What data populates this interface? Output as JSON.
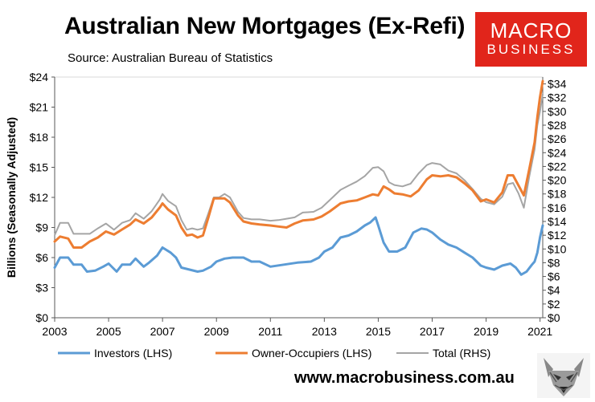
{
  "header": {
    "title": "Australian New Mortgages (Ex-Refi)",
    "subtitle": "Source: Australian Bureau of Statistics"
  },
  "logo": {
    "line1": "MACRO",
    "line2": "BUSINESS",
    "color": "#e1251b"
  },
  "footer": {
    "url": "www.macrobusiness.com.au"
  },
  "chart_data": {
    "type": "line",
    "ylabel": "Billions (Seasonally Adjusted)",
    "xlim": [
      2003,
      2021.1
    ],
    "ylim_left": [
      0,
      24
    ],
    "ylim_right": [
      0,
      35
    ],
    "x_ticks": [
      "2003",
      "2005",
      "2007",
      "2009",
      "2011",
      "2013",
      "2015",
      "2017",
      "2019",
      "2021"
    ],
    "y_left_ticks": [
      "$0",
      "$3",
      "$6",
      "$9",
      "$12",
      "$15",
      "$18",
      "$21",
      "$24"
    ],
    "y_right_ticks": [
      "$0",
      "$2",
      "$4",
      "$6",
      "$8",
      "$10",
      "$12",
      "$14",
      "$16",
      "$18",
      "$20",
      "$22",
      "$24",
      "$26",
      "$28",
      "$30",
      "$32",
      "$34"
    ],
    "grid": false,
    "legend_position": "bottom",
    "series": [
      {
        "name": "Investors (LHS)",
        "axis": "left",
        "color": "#5b9bd5",
        "points": [
          [
            2003.0,
            5.0
          ],
          [
            2003.2,
            6.0
          ],
          [
            2003.5,
            6.0
          ],
          [
            2003.7,
            5.3
          ],
          [
            2004.0,
            5.3
          ],
          [
            2004.2,
            4.6
          ],
          [
            2004.5,
            4.7
          ],
          [
            2004.8,
            5.1
          ],
          [
            2005.0,
            5.4
          ],
          [
            2005.3,
            4.6
          ],
          [
            2005.5,
            5.3
          ],
          [
            2005.8,
            5.3
          ],
          [
            2006.0,
            5.9
          ],
          [
            2006.3,
            5.1
          ],
          [
            2006.5,
            5.5
          ],
          [
            2006.8,
            6.2
          ],
          [
            2007.0,
            7.0
          ],
          [
            2007.3,
            6.5
          ],
          [
            2007.5,
            6.0
          ],
          [
            2007.7,
            5.0
          ],
          [
            2008.0,
            4.8
          ],
          [
            2008.3,
            4.6
          ],
          [
            2008.5,
            4.7
          ],
          [
            2008.8,
            5.1
          ],
          [
            2009.0,
            5.6
          ],
          [
            2009.3,
            5.9
          ],
          [
            2009.6,
            6.0
          ],
          [
            2010.0,
            6.0
          ],
          [
            2010.3,
            5.6
          ],
          [
            2010.6,
            5.6
          ],
          [
            2011.0,
            5.1
          ],
          [
            2011.5,
            5.3
          ],
          [
            2012.0,
            5.5
          ],
          [
            2012.5,
            5.6
          ],
          [
            2012.8,
            6.0
          ],
          [
            2013.0,
            6.6
          ],
          [
            2013.3,
            7.0
          ],
          [
            2013.6,
            8.0
          ],
          [
            2013.9,
            8.2
          ],
          [
            2014.2,
            8.6
          ],
          [
            2014.5,
            9.2
          ],
          [
            2014.7,
            9.5
          ],
          [
            2014.9,
            10.0
          ],
          [
            2015.0,
            9.2
          ],
          [
            2015.2,
            7.5
          ],
          [
            2015.4,
            6.6
          ],
          [
            2015.7,
            6.6
          ],
          [
            2016.0,
            7.0
          ],
          [
            2016.3,
            8.5
          ],
          [
            2016.6,
            8.9
          ],
          [
            2016.8,
            8.8
          ],
          [
            2017.0,
            8.5
          ],
          [
            2017.3,
            7.8
          ],
          [
            2017.6,
            7.3
          ],
          [
            2017.9,
            7.0
          ],
          [
            2018.2,
            6.5
          ],
          [
            2018.5,
            6.0
          ],
          [
            2018.8,
            5.2
          ],
          [
            2019.0,
            5.0
          ],
          [
            2019.3,
            4.8
          ],
          [
            2019.6,
            5.2
          ],
          [
            2019.9,
            5.4
          ],
          [
            2020.1,
            5.0
          ],
          [
            2020.3,
            4.3
          ],
          [
            2020.5,
            4.6
          ],
          [
            2020.7,
            5.3
          ],
          [
            2020.8,
            5.6
          ],
          [
            2020.9,
            6.5
          ],
          [
            2021.0,
            8.0
          ],
          [
            2021.1,
            9.2
          ]
        ]
      },
      {
        "name": "Owner-Occupiers (LHS)",
        "axis": "left",
        "color": "#ed7d31",
        "points": [
          [
            2003.0,
            7.6
          ],
          [
            2003.2,
            8.1
          ],
          [
            2003.5,
            7.9
          ],
          [
            2003.7,
            7.0
          ],
          [
            2004.0,
            7.0
          ],
          [
            2004.3,
            7.6
          ],
          [
            2004.6,
            8.0
          ],
          [
            2004.9,
            8.6
          ],
          [
            2005.2,
            8.3
          ],
          [
            2005.5,
            8.8
          ],
          [
            2005.8,
            9.3
          ],
          [
            2006.0,
            9.8
          ],
          [
            2006.3,
            9.4
          ],
          [
            2006.6,
            10.0
          ],
          [
            2006.9,
            11.0
          ],
          [
            2007.0,
            11.4
          ],
          [
            2007.2,
            10.8
          ],
          [
            2007.5,
            10.2
          ],
          [
            2007.7,
            9.0
          ],
          [
            2007.9,
            8.2
          ],
          [
            2008.1,
            8.3
          ],
          [
            2008.3,
            8.0
          ],
          [
            2008.5,
            8.2
          ],
          [
            2008.7,
            10.0
          ],
          [
            2008.9,
            11.9
          ],
          [
            2009.1,
            11.9
          ],
          [
            2009.3,
            11.9
          ],
          [
            2009.5,
            11.5
          ],
          [
            2009.8,
            10.2
          ],
          [
            2010.0,
            9.6
          ],
          [
            2010.3,
            9.4
          ],
          [
            2010.6,
            9.3
          ],
          [
            2011.0,
            9.2
          ],
          [
            2011.3,
            9.1
          ],
          [
            2011.6,
            9.0
          ],
          [
            2011.9,
            9.4
          ],
          [
            2012.2,
            9.7
          ],
          [
            2012.6,
            9.8
          ],
          [
            2012.9,
            10.1
          ],
          [
            2013.2,
            10.6
          ],
          [
            2013.6,
            11.4
          ],
          [
            2013.9,
            11.6
          ],
          [
            2014.2,
            11.7
          ],
          [
            2014.5,
            12.0
          ],
          [
            2014.8,
            12.3
          ],
          [
            2015.0,
            12.2
          ],
          [
            2015.2,
            13.1
          ],
          [
            2015.4,
            12.8
          ],
          [
            2015.6,
            12.4
          ],
          [
            2015.9,
            12.3
          ],
          [
            2016.2,
            12.1
          ],
          [
            2016.5,
            12.7
          ],
          [
            2016.8,
            13.8
          ],
          [
            2017.0,
            14.2
          ],
          [
            2017.3,
            14.1
          ],
          [
            2017.6,
            14.2
          ],
          [
            2017.9,
            14.0
          ],
          [
            2018.2,
            13.4
          ],
          [
            2018.5,
            12.7
          ],
          [
            2018.8,
            11.6
          ],
          [
            2019.0,
            11.8
          ],
          [
            2019.3,
            11.5
          ],
          [
            2019.6,
            12.5
          ],
          [
            2019.8,
            14.2
          ],
          [
            2020.0,
            14.2
          ],
          [
            2020.2,
            13.2
          ],
          [
            2020.4,
            12.2
          ],
          [
            2020.6,
            14.8
          ],
          [
            2020.8,
            17.5
          ],
          [
            2020.9,
            20.0
          ],
          [
            2021.0,
            22.0
          ],
          [
            2021.1,
            23.6
          ]
        ]
      },
      {
        "name": "Total (RHS)",
        "axis": "right",
        "color": "#a5a5a5",
        "points": [
          [
            2003.0,
            12.0
          ],
          [
            2003.2,
            13.8
          ],
          [
            2003.5,
            13.8
          ],
          [
            2003.7,
            12.2
          ],
          [
            2004.0,
            12.2
          ],
          [
            2004.3,
            12.2
          ],
          [
            2004.6,
            13.0
          ],
          [
            2004.9,
            13.7
          ],
          [
            2005.2,
            12.8
          ],
          [
            2005.5,
            13.8
          ],
          [
            2005.8,
            14.2
          ],
          [
            2006.0,
            15.2
          ],
          [
            2006.3,
            14.4
          ],
          [
            2006.6,
            15.5
          ],
          [
            2006.9,
            17.2
          ],
          [
            2007.0,
            18.0
          ],
          [
            2007.2,
            17.0
          ],
          [
            2007.5,
            16.2
          ],
          [
            2007.7,
            14.2
          ],
          [
            2007.9,
            12.8
          ],
          [
            2008.1,
            13.0
          ],
          [
            2008.3,
            12.8
          ],
          [
            2008.5,
            13.0
          ],
          [
            2008.7,
            15.2
          ],
          [
            2008.9,
            17.5
          ],
          [
            2009.1,
            17.5
          ],
          [
            2009.3,
            18.0
          ],
          [
            2009.5,
            17.5
          ],
          [
            2009.8,
            15.4
          ],
          [
            2010.0,
            14.5
          ],
          [
            2010.3,
            14.3
          ],
          [
            2010.6,
            14.3
          ],
          [
            2011.0,
            14.1
          ],
          [
            2011.3,
            14.2
          ],
          [
            2011.6,
            14.4
          ],
          [
            2011.9,
            14.6
          ],
          [
            2012.2,
            15.3
          ],
          [
            2012.6,
            15.4
          ],
          [
            2012.9,
            16.0
          ],
          [
            2013.2,
            17.1
          ],
          [
            2013.6,
            18.6
          ],
          [
            2013.9,
            19.2
          ],
          [
            2014.2,
            19.8
          ],
          [
            2014.5,
            20.6
          ],
          [
            2014.8,
            21.8
          ],
          [
            2015.0,
            21.9
          ],
          [
            2015.2,
            21.3
          ],
          [
            2015.4,
            19.7
          ],
          [
            2015.6,
            19.3
          ],
          [
            2015.9,
            19.1
          ],
          [
            2016.2,
            19.5
          ],
          [
            2016.5,
            21.0
          ],
          [
            2016.8,
            22.2
          ],
          [
            2017.0,
            22.5
          ],
          [
            2017.3,
            22.3
          ],
          [
            2017.6,
            21.4
          ],
          [
            2017.9,
            21.0
          ],
          [
            2018.2,
            20.0
          ],
          [
            2018.5,
            18.7
          ],
          [
            2018.8,
            17.3
          ],
          [
            2019.0,
            16.8
          ],
          [
            2019.3,
            16.5
          ],
          [
            2019.6,
            17.6
          ],
          [
            2019.8,
            19.4
          ],
          [
            2020.0,
            19.6
          ],
          [
            2020.2,
            18.1
          ],
          [
            2020.4,
            16.0
          ],
          [
            2020.6,
            20.5
          ],
          [
            2020.8,
            24.5
          ],
          [
            2020.9,
            28.0
          ],
          [
            2021.0,
            30.0
          ],
          [
            2021.1,
            32.5
          ]
        ]
      }
    ]
  }
}
